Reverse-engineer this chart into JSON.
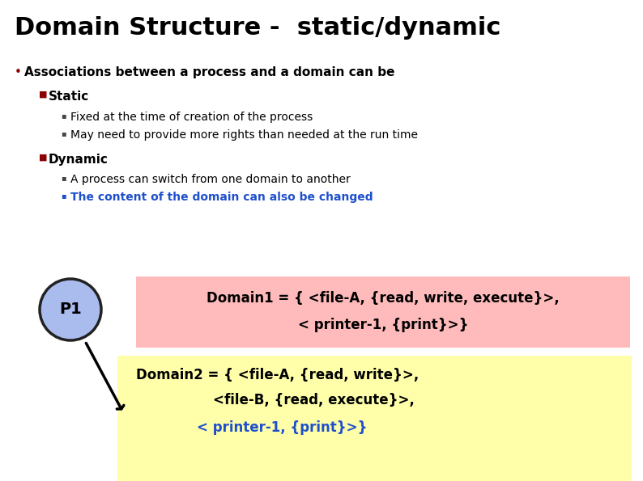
{
  "title": "Domain Structure -  static/dynamic",
  "title_fontsize": 22,
  "bg_color": "#ffffff",
  "bullet_color": "#8B0000",
  "blue_color": "#1E4FCC",
  "black_color": "#000000",
  "gray_color": "#444444",
  "bullet1_text": "Associations between a process and a domain can be",
  "sub1_label": "Static",
  "sub1_item1": "Fixed at the time of creation of the process",
  "sub1_item2": "May need to provide more rights than needed at the run time",
  "sub2_label": "Dynamic",
  "sub2_item1": "A process can switch from one domain to another",
  "sub2_blue_item": "The content of the domain can also be changed",
  "p1_label": "P1",
  "p1_circle_color": "#AABBEE",
  "p1_circle_edge": "#222222",
  "domain1_bg": "#FFBBBB",
  "domain1_line1": "Domain1 = { <file-A, {read, write, execute}>,",
  "domain1_line2": "< printer-1, {print}>}",
  "domain2_bg": "#FFFFAA",
  "domain2_line1": "Domain2 = { <file-A, {read, write}>,",
  "domain2_line2": "<file-B, {read, execute}>,",
  "domain2_line3": "< printer-1, {print}>}",
  "domain2_line3_color": "#1E4FCC",
  "figw": 7.94,
  "figh": 5.95,
  "dpi": 100
}
